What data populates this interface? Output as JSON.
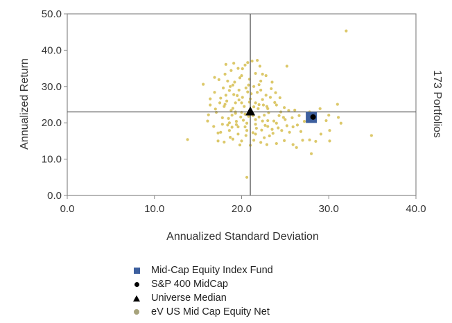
{
  "chart_data": {
    "type": "scatter",
    "xlabel": "Annualized Standard Deviation",
    "ylabel": "Annualized Return",
    "right_label": "173 Portfolios",
    "xlim": [
      0.0,
      40.0
    ],
    "ylim": [
      0.0,
      50.0
    ],
    "x_ticks": [
      "0.0",
      "10.0",
      "20.0",
      "30.0",
      "40.0"
    ],
    "y_ticks": [
      "0.0",
      "10.0",
      "20.0",
      "30.0",
      "40.0",
      "50.0"
    ],
    "grid": false,
    "median_lines": {
      "x": 21.0,
      "y": 23.0
    },
    "legend_position": "bottom",
    "series": [
      {
        "name": "Mid-Cap Equity Index Fund",
        "marker": "square",
        "color": "#3d5f9e",
        "points": [
          [
            28.0,
            21.5
          ]
        ]
      },
      {
        "name": "S&P 400 MidCap",
        "marker": "dot",
        "color": "#000000",
        "points": [
          [
            28.2,
            21.6
          ]
        ]
      },
      {
        "name": "Universe Median",
        "marker": "triangle",
        "color": "#000000",
        "points": [
          [
            21.0,
            23.0
          ]
        ]
      },
      {
        "name": "eV US Mid Cap Equity Net",
        "marker": "circle",
        "color": "#d8c25a",
        "points": [
          [
            18.1,
            33.4
          ],
          [
            19.0,
            30.4
          ],
          [
            20.1,
            34.9
          ],
          [
            21.2,
            37.0
          ],
          [
            22.2,
            31.5
          ],
          [
            20.5,
            29.6
          ],
          [
            19.5,
            27.5
          ],
          [
            18.6,
            28.9
          ],
          [
            17.6,
            26.8
          ],
          [
            18.1,
            25.1
          ],
          [
            19.0,
            24.0
          ],
          [
            20.0,
            25.5
          ],
          [
            21.0,
            26.6
          ],
          [
            22.0,
            25.0
          ],
          [
            23.0,
            23.9
          ],
          [
            24.0,
            24.9
          ],
          [
            22.6,
            22.1
          ],
          [
            21.6,
            20.9
          ],
          [
            20.6,
            19.9
          ],
          [
            19.6,
            18.9
          ],
          [
            18.6,
            20.0
          ],
          [
            17.8,
            21.4
          ],
          [
            18.9,
            22.1
          ],
          [
            19.9,
            21.6
          ],
          [
            21.0,
            23.4
          ],
          [
            22.0,
            21.6
          ],
          [
            23.0,
            20.6
          ],
          [
            24.0,
            19.9
          ],
          [
            25.0,
            20.9
          ],
          [
            25.9,
            18.9
          ],
          [
            24.6,
            17.9
          ],
          [
            23.6,
            17.1
          ],
          [
            22.6,
            15.9
          ],
          [
            21.6,
            16.9
          ],
          [
            20.6,
            17.9
          ],
          [
            19.6,
            16.9
          ],
          [
            18.6,
            17.9
          ],
          [
            17.6,
            17.4
          ],
          [
            18.4,
            19.4
          ],
          [
            19.4,
            20.4
          ],
          [
            20.4,
            22.4
          ],
          [
            21.4,
            24.4
          ],
          [
            22.4,
            26.4
          ],
          [
            21.8,
            28.4
          ],
          [
            20.8,
            30.4
          ],
          [
            19.8,
            32.4
          ],
          [
            18.8,
            34.4
          ],
          [
            20.4,
            35.9
          ],
          [
            22.4,
            33.4
          ],
          [
            23.4,
            29.4
          ],
          [
            24.4,
            26.9
          ],
          [
            25.4,
            23.4
          ],
          [
            25.8,
            21.4
          ],
          [
            26.4,
            19.4
          ],
          [
            24.9,
            15.1
          ],
          [
            25.9,
            14.0
          ],
          [
            27.0,
            15.2
          ],
          [
            17.4,
            31.9
          ],
          [
            16.9,
            28.4
          ],
          [
            16.4,
            24.9
          ],
          [
            17.1,
            22.9
          ],
          [
            15.6,
            30.6
          ],
          [
            13.8,
            15.4
          ],
          [
            25.2,
            35.6
          ],
          [
            29.0,
            23.9
          ],
          [
            30.0,
            22.1
          ],
          [
            31.0,
            25.1
          ],
          [
            31.4,
            19.9
          ],
          [
            30.1,
            17.9
          ],
          [
            29.1,
            16.9
          ],
          [
            28.5,
            14.9
          ],
          [
            30.1,
            15.0
          ],
          [
            32.0,
            45.3
          ],
          [
            34.9,
            16.5
          ],
          [
            28.0,
            11.5
          ],
          [
            20.6,
            5.0
          ],
          [
            26.3,
            13.2
          ],
          [
            23.0,
            19.0
          ],
          [
            22.3,
            18.0
          ],
          [
            19.3,
            23.0
          ],
          [
            18.3,
            26.0
          ],
          [
            20.1,
            27.0
          ],
          [
            21.1,
            28.0
          ],
          [
            22.2,
            29.0
          ],
          [
            23.3,
            27.0
          ],
          [
            21.6,
            25.5
          ],
          [
            20.3,
            24.5
          ],
          [
            19.3,
            25.5
          ],
          [
            18.7,
            30.0
          ],
          [
            20.9,
            32.0
          ],
          [
            22.9,
            24.5
          ],
          [
            24.3,
            22.0
          ],
          [
            23.7,
            20.5
          ],
          [
            22.7,
            19.3
          ],
          [
            21.7,
            18.5
          ],
          [
            20.5,
            16.5
          ],
          [
            19.0,
            15.5
          ],
          [
            17.3,
            15.0
          ],
          [
            16.8,
            19.0
          ],
          [
            16.1,
            20.5
          ],
          [
            17.0,
            23.8
          ],
          [
            18.0,
            24.5
          ],
          [
            19.7,
            29.0
          ],
          [
            21.4,
            30.0
          ],
          [
            23.8,
            25.6
          ],
          [
            24.8,
            21.5
          ],
          [
            21.3,
            22.0
          ],
          [
            20.2,
            20.7
          ],
          [
            18.9,
            18.8
          ],
          [
            22.8,
            27.6
          ],
          [
            20.0,
            33.0
          ],
          [
            18.4,
            31.5
          ],
          [
            17.9,
            29.6
          ],
          [
            22.1,
            35.6
          ],
          [
            23.5,
            31.2
          ],
          [
            19.1,
            36.4
          ],
          [
            21.8,
            37.2
          ],
          [
            19.8,
            13.9
          ],
          [
            21.0,
            13.8
          ],
          [
            22.2,
            14.6
          ],
          [
            23.2,
            16.4
          ],
          [
            24.2,
            18.6
          ],
          [
            25.2,
            19.2
          ],
          [
            26.6,
            22.0
          ],
          [
            27.2,
            20.4
          ],
          [
            17.8,
            19.6
          ],
          [
            16.4,
            26.6
          ],
          [
            16.2,
            22.2
          ],
          [
            19.3,
            22.6
          ],
          [
            20.8,
            21.8
          ],
          [
            24.5,
            23.0
          ],
          [
            19.1,
            27.8
          ],
          [
            21.9,
            23.9
          ],
          [
            23.1,
            22.8
          ],
          [
            18.5,
            21.2
          ],
          [
            20.4,
            18.9
          ],
          [
            21.6,
            19.6
          ],
          [
            22.4,
            20.5
          ],
          [
            20.9,
            25.7
          ],
          [
            19.7,
            26.3
          ],
          [
            18.2,
            27.6
          ],
          [
            22.5,
            24.9
          ],
          [
            25.5,
            17.4
          ],
          [
            17.3,
            17.2
          ],
          [
            18.0,
            14.7
          ],
          [
            24.0,
            14.3
          ],
          [
            27.8,
            23.0
          ],
          [
            29.7,
            20.6
          ],
          [
            31.1,
            21.5
          ],
          [
            21.3,
            17.3
          ],
          [
            20.0,
            22.9
          ],
          [
            19.4,
            19.5
          ],
          [
            23.5,
            18.2
          ],
          [
            18.8,
            23.4
          ],
          [
            22.0,
            30.5
          ],
          [
            20.7,
            28.5
          ],
          [
            19.2,
            31.2
          ],
          [
            21.6,
            33.6
          ],
          [
            17.5,
            25.5
          ],
          [
            24.9,
            24.2
          ],
          [
            26.1,
            23.5
          ],
          [
            22.8,
            33.0
          ],
          [
            19.6,
            35.0
          ],
          [
            18.2,
            36.1
          ],
          [
            20.7,
            36.6
          ],
          [
            23.9,
            28.3
          ],
          [
            16.9,
            32.5
          ],
          [
            21.4,
            15.2
          ],
          [
            22.9,
            14.0
          ],
          [
            20.0,
            15.0
          ],
          [
            18.7,
            16.0
          ],
          [
            26.8,
            17.6
          ],
          [
            27.8,
            15.3
          ]
        ]
      }
    ]
  }
}
